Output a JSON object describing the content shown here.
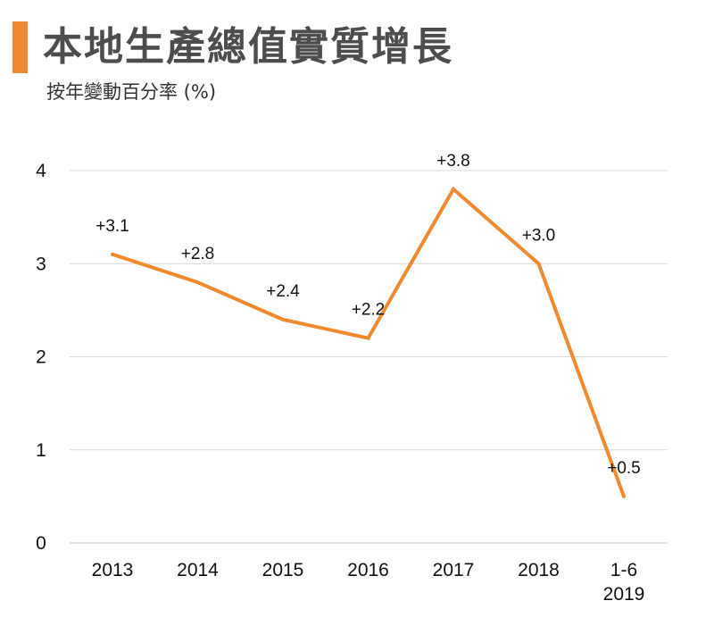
{
  "header": {
    "title": "本地生產總值實質增長",
    "subtitle": "按年變動百分率 (%)",
    "accent_color": "#f08a30"
  },
  "chart_data": {
    "type": "line",
    "title": "本地生產總值實質增長",
    "subtitle": "按年變動百分率 (%)",
    "xlabel": "",
    "ylabel": "",
    "categories": [
      "2013",
      "2014",
      "2015",
      "2016",
      "2017",
      "2018",
      "1-6 2019"
    ],
    "category_lines": [
      [
        "2013"
      ],
      [
        "2014"
      ],
      [
        "2015"
      ],
      [
        "2016"
      ],
      [
        "2017"
      ],
      [
        "2018"
      ],
      [
        "1-6",
        "2019"
      ]
    ],
    "values": [
      3.1,
      2.8,
      2.4,
      2.2,
      3.8,
      3.0,
      0.5
    ],
    "data_labels": [
      "+3.1",
      "+2.8",
      "+2.4",
      "+2.2",
      "+3.8",
      "+3.0",
      "+0.5"
    ],
    "y_ticks": [
      0,
      1,
      2,
      3,
      4
    ],
    "ylim": [
      0,
      4
    ],
    "grid": true,
    "legend": "none",
    "line_color": "#f08a30",
    "grid_color": "#d9d9d9"
  }
}
